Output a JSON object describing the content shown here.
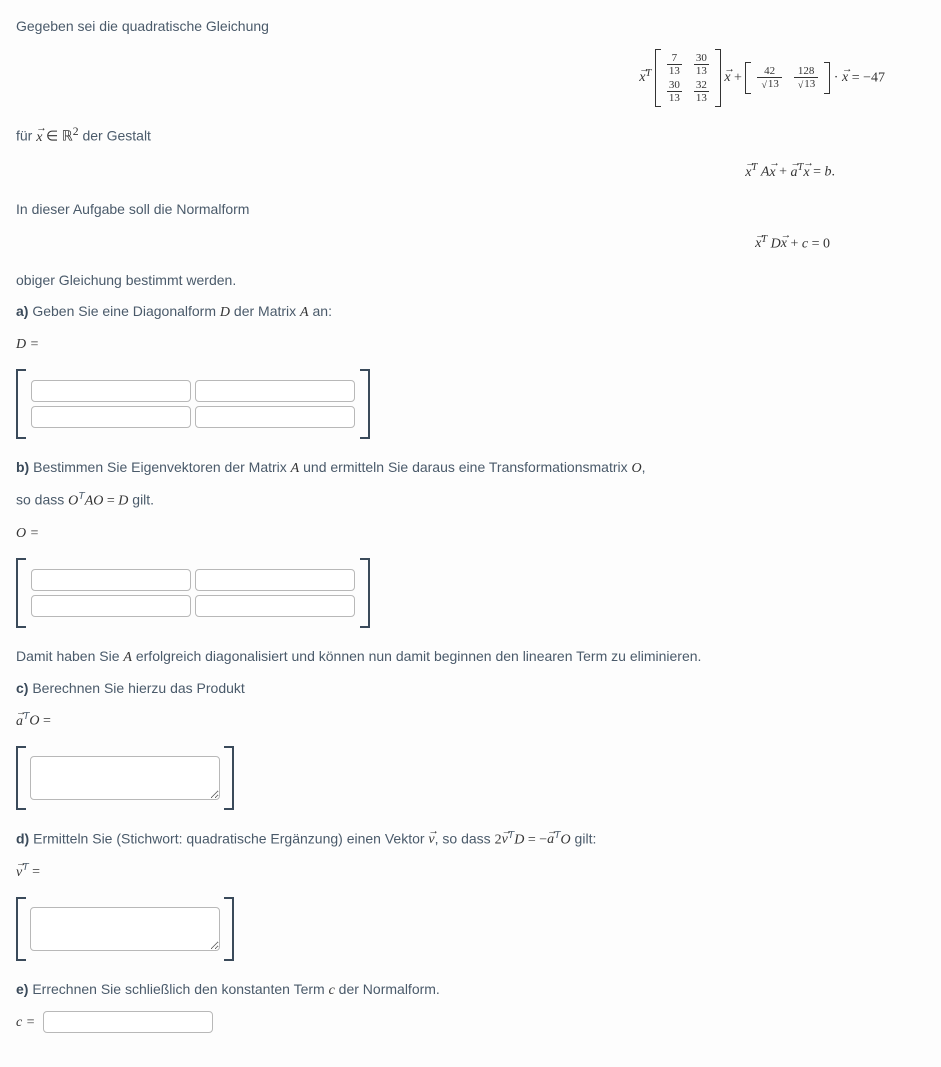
{
  "intro": "Gegeben sei die quadratische Gleichung",
  "eq1": {
    "A": {
      "a11_num": "7",
      "a11_den": "13",
      "a12_num": "30",
      "a12_den": "13",
      "a21_num": "30",
      "a21_den": "13",
      "a22_num": "32",
      "a22_den": "13"
    },
    "a": {
      "v1_num": "42",
      "v1_den": "13",
      "v2_num": "128",
      "v2_den": "13"
    },
    "rhs": "−47"
  },
  "line2_pre": "für ",
  "line2_set": " ∈ ℝ",
  "line2_exp": "2",
  "line2_post": " der Gestalt",
  "eq2": {
    "rhs_var": "b"
  },
  "line3": "In dieser Aufgabe soll die Normalform",
  "eq3": {
    "c": "c",
    "zero": "0"
  },
  "line4": "obiger Gleichung bestimmt werden.",
  "a": {
    "label": "a)",
    "text": " Geben Sie eine Diagonalform ",
    "var": "D",
    "text2": " der Matrix ",
    "var2": "A",
    "text3": " an:",
    "lhs": "D ="
  },
  "b": {
    "label": "b)",
    "text": " Bestimmen Sie Eigenvektoren der Matrix ",
    "var": "A",
    "text2": " und ermitteln Sie daraus eine Transformationsmatrix ",
    "var2": "O",
    "text3": ",",
    "line2_pre": "so dass ",
    "line2_eq": "OᵀAO = D",
    "line2_post": " gilt.",
    "lhs": "O ="
  },
  "mid": "Damit haben Sie ",
  "mid_var": "A",
  "mid2": " erfolgreich diagonalisiert und können nun damit beginnen den linearen Term zu eliminieren.",
  "c": {
    "label": "c)",
    "text": " Berechnen Sie hierzu das Produkt"
  },
  "d": {
    "label": "d)",
    "text": " Ermitteln Sie (Stichwort: quadratische Ergänzung) einen Vektor ",
    "post": ", so dass ",
    "eq_post": " gilt:"
  },
  "e": {
    "label": "e)",
    "text": " Errechnen Sie schließlich den konstanten Term ",
    "var": "c",
    "text2": " der Normalform.",
    "lhs": "c ="
  }
}
